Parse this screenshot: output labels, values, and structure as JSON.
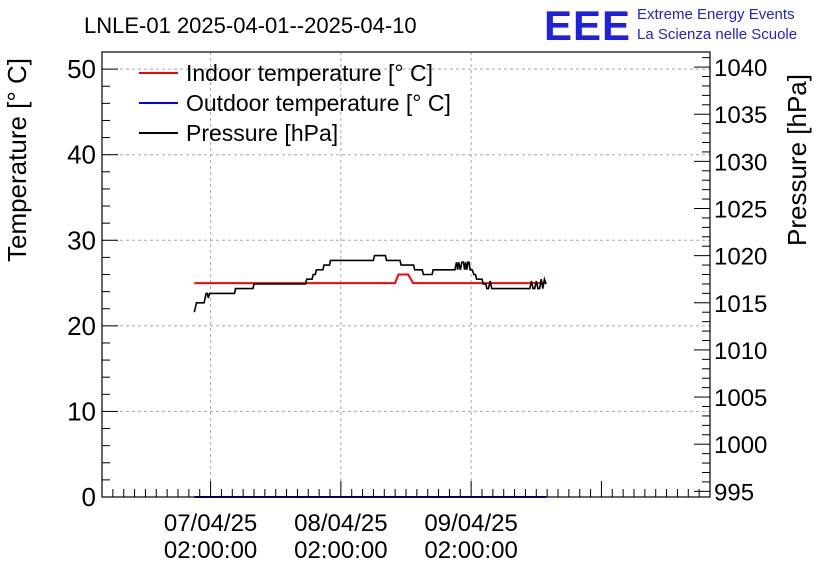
{
  "chart_data": {
    "type": "line",
    "title": "LNLE-01 2025-04-01--2025-04-10",
    "logo": {
      "text": "EEE",
      "line1": "Extreme Energy Events",
      "line2": "La Scienza nelle Scuole",
      "color": "#2020e0"
    },
    "ylabel_left": "Temperature [° C]",
    "ylabel_right": "Pressure [hPa]",
    "ylim_left": [
      0,
      52
    ],
    "ylim_right": [
      994.4,
      1041.6
    ],
    "yticks_left": [
      0,
      10,
      20,
      30,
      40,
      50
    ],
    "yticks_right": [
      995,
      1000,
      1005,
      1010,
      1015,
      1020,
      1025,
      1030,
      1035,
      1040
    ],
    "xlim_hours": [
      -20,
      92
    ],
    "xticks": [
      {
        "hours": 0,
        "line1": "07/04/25",
        "line2": "02:00:00"
      },
      {
        "hours": 24,
        "line1": "08/04/25",
        "line2": "02:00:00"
      },
      {
        "hours": 48,
        "line1": "09/04/25",
        "line2": "02:00:00"
      }
    ],
    "grid": true,
    "legend": {
      "placement": "top-left",
      "entries": [
        {
          "label": "Indoor temperature [° C]",
          "color": "#ff0000"
        },
        {
          "label": "Outdoor temperature [° C]",
          "color": "#0000ff"
        },
        {
          "label": "Pressure [hPa]",
          "color": "#000000"
        }
      ]
    },
    "series": [
      {
        "name": "Indoor temperature [° C]",
        "axis": "left",
        "color": "#ff0000",
        "x": [
          -3,
          34,
          34.6,
          36.4,
          37.3,
          61.8
        ],
        "y": [
          25,
          25,
          26,
          26,
          25,
          25
        ]
      },
      {
        "name": "Outdoor temperature [° C]",
        "axis": "left",
        "color": "#0000ff",
        "x": [
          -3,
          61.8
        ],
        "y": [
          0,
          0
        ]
      },
      {
        "name": "Pressure [hPa]",
        "axis": "right",
        "color": "#000000",
        "x": [
          -3,
          -2.8,
          -2.6,
          -1.2,
          -1,
          -0.8,
          -0.6,
          -0.4,
          -0.2,
          0,
          4.4,
          4.6,
          7.8,
          8,
          9.8,
          10,
          17.5,
          17.7,
          18.7,
          18.9,
          19.3,
          19.5,
          20.7,
          20.9,
          21.9,
          22.1,
          30,
          30.2,
          32.2,
          32.4,
          34.9,
          35.1,
          37.4,
          37.6,
          39,
          39.2,
          40.8,
          41,
          45,
          45.3,
          45.5,
          45.7,
          46,
          46.3,
          46.6,
          46.8,
          47,
          47.2,
          47.4,
          47.6,
          47.8,
          48,
          48.2,
          48.5,
          48.8,
          49,
          50,
          50.2,
          50.7,
          50.9,
          51.2,
          51.5,
          51.8,
          52.1,
          58.8,
          59.1,
          59.4,
          59.7,
          60,
          60.3,
          60.6,
          60.9,
          61.2,
          61.5,
          61.8
        ],
        "y": [
          1014,
          1014.5,
          1015,
          1015,
          1015.5,
          1016,
          1016,
          1015.5,
          1016,
          1016,
          1016,
          1016.5,
          1016.5,
          1017,
          1017,
          1017,
          1017,
          1017.5,
          1017.5,
          1018,
          1018,
          1018.5,
          1018.5,
          1019,
          1019,
          1019.5,
          1019.5,
          1020,
          1020,
          1019.5,
          1019.5,
          1019,
          1019,
          1018.5,
          1018.5,
          1018,
          1018,
          1018.5,
          1018.5,
          1019.3,
          1018.5,
          1019.3,
          1018.5,
          1019.3,
          1019.3,
          1018.5,
          1019.3,
          1018.5,
          1019.3,
          1019.3,
          1018.5,
          1018.5,
          1018.5,
          1018,
          1018,
          1017.5,
          1017.5,
          1017,
          1017,
          1016.5,
          1016.5,
          1017.3,
          1016.5,
          1016.5,
          1016.5,
          1017.3,
          1016.5,
          1016.5,
          1017.3,
          1016.5,
          1016.5,
          1017.5,
          1016.5,
          1017.5,
          1017
        ]
      }
    ]
  }
}
